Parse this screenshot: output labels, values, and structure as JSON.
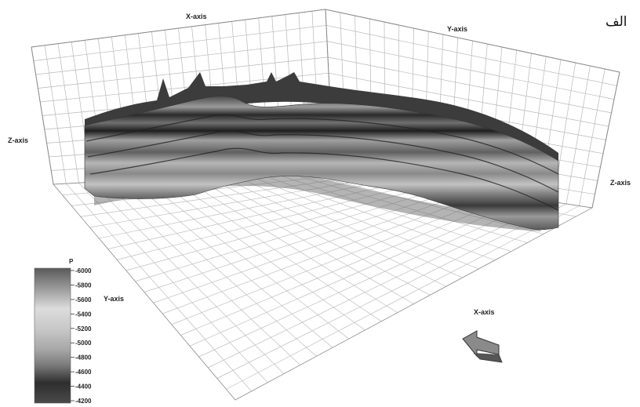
{
  "panel_tag": "الف",
  "axes": {
    "x_label": "X-axis",
    "y_label": "Y-axis",
    "z_label": "Z-axis"
  },
  "colorbar": {
    "title": "P",
    "ticks": [
      "6000",
      "5800",
      "5600",
      "5400",
      "5200",
      "5000",
      "4800",
      "4600",
      "4400",
      "4200"
    ]
  },
  "view_arrow_icon": "arrow-left-icon"
}
